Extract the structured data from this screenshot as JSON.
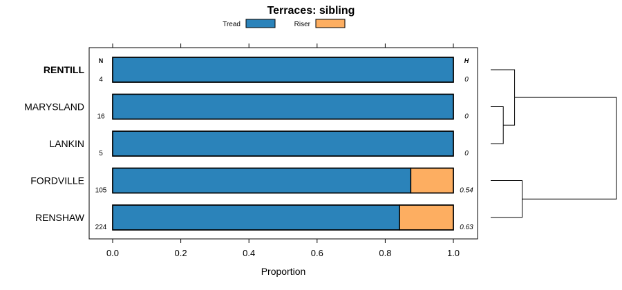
{
  "chart_data": {
    "type": "bar",
    "orientation": "horizontal",
    "stacked": true,
    "title": "Terraces: sibling",
    "xlabel": "Proportion",
    "xlim": [
      0,
      1
    ],
    "x_ticks": [
      "0.0",
      "0.2",
      "0.4",
      "0.6",
      "0.8",
      "1.0"
    ],
    "x_tick_values": [
      0,
      0.2,
      0.4,
      0.6,
      0.8,
      1.0
    ],
    "legend": [
      {
        "name": "Tread",
        "color": "#2b83ba"
      },
      {
        "name": "Riser",
        "color": "#fdae61"
      }
    ],
    "n_header": "N",
    "h_header": "H",
    "categories": [
      "RENTILL",
      "MARYSLAND",
      "LANKIN",
      "FORDVILLE",
      "RENSHAW"
    ],
    "highlight": "RENTILL",
    "series": [
      {
        "name": "Tread",
        "values": [
          1.0,
          1.0,
          1.0,
          0.875,
          0.842
        ]
      },
      {
        "name": "Riser",
        "values": [
          0.0,
          0.0,
          0.0,
          0.125,
          0.158
        ]
      }
    ],
    "n_values": [
      "4",
      "16",
      "5",
      "105",
      "224"
    ],
    "h_values": [
      "0",
      "0",
      "0",
      "0.54",
      "0.63"
    ],
    "dendrogram": {
      "leaves": [
        "RENTILL",
        "MARYSLAND",
        "LANKIN",
        "FORDVILLE",
        "RENSHAW"
      ],
      "merges": [
        {
          "children": [
            "MARYSLAND",
            "LANKIN"
          ],
          "height": 0.1
        },
        {
          "children": [
            "RENTILL",
            "MARYSLAND+LANKIN"
          ],
          "height": 0.19
        },
        {
          "children": [
            "FORDVILLE",
            "RENSHAW"
          ],
          "height": 0.25
        },
        {
          "children": [
            "RENTILL+MARYSLAND+LANKIN",
            "FORDVILLE+RENSHAW"
          ],
          "height": 1.0
        }
      ]
    }
  }
}
